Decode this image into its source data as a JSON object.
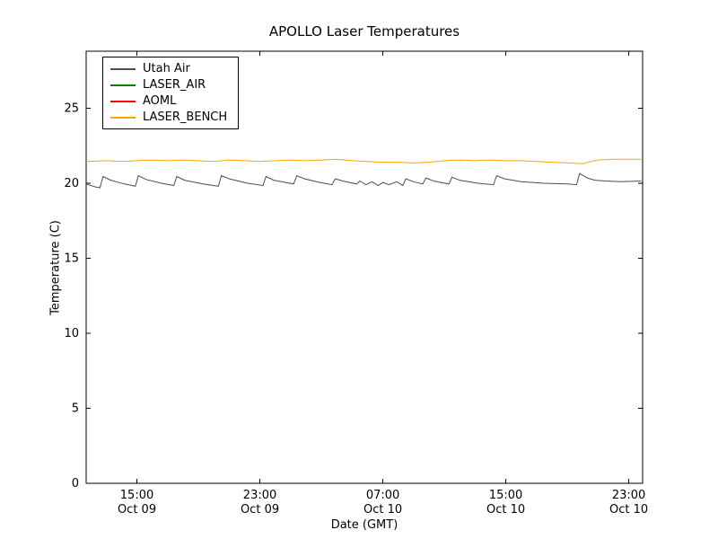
{
  "figure": {
    "background": "#ffffff"
  },
  "chart_data": {
    "type": "line",
    "title": "APOLLO Laser Temperatures",
    "xlabel": "Date (GMT)",
    "ylabel": "Temperature (C)",
    "x_unit": "hours since Oct 09 00:00 GMT",
    "xlim": [
      11.7,
      47.9
    ],
    "ylim": [
      0,
      28.8
    ],
    "grid": false,
    "legend_position": "upper-left",
    "y_ticks": [
      0,
      5,
      10,
      15,
      20,
      25
    ],
    "x_ticks": [
      {
        "value": 15,
        "time": "15:00",
        "date": "Oct 09"
      },
      {
        "value": 23,
        "time": "23:00",
        "date": "Oct 09"
      },
      {
        "value": 31,
        "time": "07:00",
        "date": "Oct 10"
      },
      {
        "value": 39,
        "time": "15:00",
        "date": "Oct 10"
      },
      {
        "value": 47,
        "time": "23:00",
        "date": "Oct 10"
      }
    ],
    "series": [
      {
        "name": "Utah Air",
        "color": "#4d4d4d",
        "points": [
          [
            11.7,
            19.95
          ],
          [
            12.3,
            19.75
          ],
          [
            12.6,
            19.7
          ],
          [
            12.8,
            20.45
          ],
          [
            13.3,
            20.2
          ],
          [
            14.2,
            19.95
          ],
          [
            14.9,
            19.8
          ],
          [
            15.1,
            20.5
          ],
          [
            15.6,
            20.25
          ],
          [
            16.6,
            20.0
          ],
          [
            17.4,
            19.85
          ],
          [
            17.6,
            20.45
          ],
          [
            18.1,
            20.2
          ],
          [
            19.3,
            19.95
          ],
          [
            20.3,
            19.8
          ],
          [
            20.5,
            20.5
          ],
          [
            21.0,
            20.3
          ],
          [
            22.2,
            20.0
          ],
          [
            23.2,
            19.85
          ],
          [
            23.4,
            20.45
          ],
          [
            23.9,
            20.2
          ],
          [
            25.2,
            19.95
          ],
          [
            25.4,
            20.5
          ],
          [
            25.9,
            20.3
          ],
          [
            26.9,
            20.05
          ],
          [
            27.7,
            19.9
          ],
          [
            27.9,
            20.3
          ],
          [
            28.4,
            20.15
          ],
          [
            29.3,
            19.95
          ],
          [
            29.5,
            20.15
          ],
          [
            29.9,
            19.9
          ],
          [
            30.3,
            20.1
          ],
          [
            30.7,
            19.85
          ],
          [
            31.0,
            20.05
          ],
          [
            31.4,
            19.9
          ],
          [
            31.9,
            20.1
          ],
          [
            32.3,
            19.85
          ],
          [
            32.5,
            20.3
          ],
          [
            33.0,
            20.1
          ],
          [
            33.6,
            19.95
          ],
          [
            33.8,
            20.35
          ],
          [
            34.3,
            20.15
          ],
          [
            35.3,
            19.95
          ],
          [
            35.5,
            20.4
          ],
          [
            36.0,
            20.2
          ],
          [
            37.2,
            20.0
          ],
          [
            38.2,
            19.9
          ],
          [
            38.4,
            20.5
          ],
          [
            38.9,
            20.3
          ],
          [
            40.0,
            20.1
          ],
          [
            41.5,
            20.0
          ],
          [
            43.0,
            19.95
          ],
          [
            43.6,
            19.9
          ],
          [
            43.8,
            20.65
          ],
          [
            44.3,
            20.35
          ],
          [
            44.8,
            20.2
          ],
          [
            45.5,
            20.15
          ],
          [
            46.5,
            20.1
          ],
          [
            47.8,
            20.15
          ]
        ]
      },
      {
        "name": "LASER_AIR",
        "color": "#008000",
        "points": []
      },
      {
        "name": "AOML",
        "color": "#ff0000",
        "points": []
      },
      {
        "name": "LASER_BENCH",
        "color": "#ffa500",
        "points": [
          [
            11.7,
            21.45
          ],
          [
            13.0,
            21.5
          ],
          [
            14.0,
            21.45
          ],
          [
            15.0,
            21.5
          ],
          [
            16.0,
            21.55
          ],
          [
            17.0,
            21.5
          ],
          [
            18.0,
            21.55
          ],
          [
            19.0,
            21.5
          ],
          [
            20.0,
            21.45
          ],
          [
            21.0,
            21.55
          ],
          [
            22.0,
            21.5
          ],
          [
            23.0,
            21.45
          ],
          [
            24.0,
            21.5
          ],
          [
            25.0,
            21.55
          ],
          [
            26.0,
            21.5
          ],
          [
            27.0,
            21.55
          ],
          [
            28.0,
            21.6
          ],
          [
            29.0,
            21.5
          ],
          [
            30.0,
            21.45
          ],
          [
            31.0,
            21.4
          ],
          [
            32.0,
            21.4
          ],
          [
            33.0,
            21.35
          ],
          [
            34.0,
            21.4
          ],
          [
            35.0,
            21.5
          ],
          [
            36.0,
            21.55
          ],
          [
            37.0,
            21.5
          ],
          [
            38.0,
            21.55
          ],
          [
            39.0,
            21.5
          ],
          [
            40.0,
            21.5
          ],
          [
            41.0,
            21.45
          ],
          [
            42.0,
            21.4
          ],
          [
            43.0,
            21.35
          ],
          [
            44.0,
            21.3
          ],
          [
            44.5,
            21.45
          ],
          [
            45.0,
            21.55
          ],
          [
            46.0,
            21.6
          ],
          [
            47.8,
            21.6
          ]
        ]
      }
    ]
  }
}
